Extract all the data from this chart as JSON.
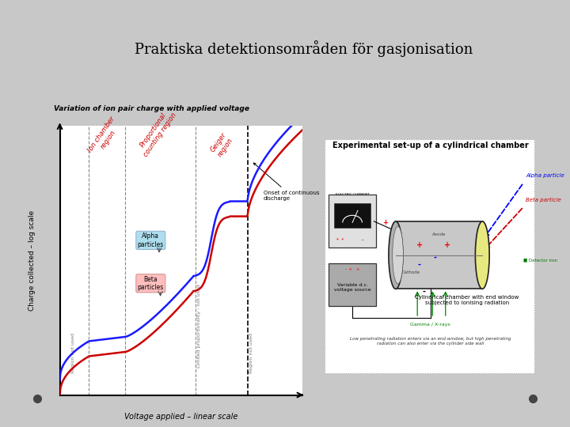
{
  "title": "Praktiska detektionsområden för gasjonisation",
  "title_fontsize": 13,
  "title_font": "serif",
  "bg_color": "#c8c8c8",
  "slide_bg": "#ffffff",
  "graph_title": "Variation of ion pair charge with applied voltage",
  "xlabel": "Voltage applied – linear scale",
  "ylabel": "Charge collected – log scale",
  "alpha_color": "#1a1aff",
  "beta_color": "#cc0000",
  "exp_title": "Experimental set-up of a cylindrical chamber"
}
